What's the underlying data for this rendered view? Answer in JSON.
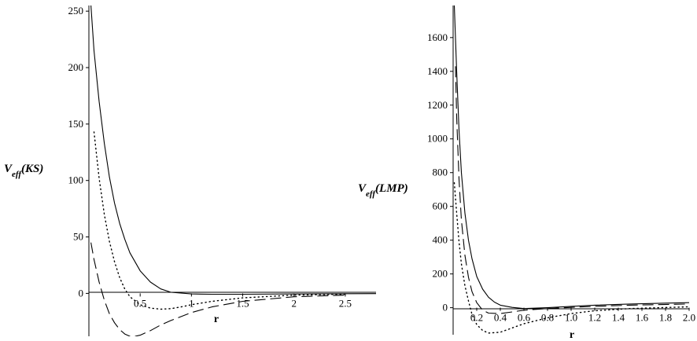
{
  "chart_data": [
    {
      "type": "line",
      "title": "",
      "ylabel": {
        "main": "V",
        "sub": "eff",
        "inner": "KS"
      },
      "xlabel": "r",
      "xlim": [
        0.0,
        2.8
      ],
      "ylim": [
        -38,
        255
      ],
      "x_ticks": [
        0.5,
        1,
        1.5,
        2,
        2.5
      ],
      "x_tick_labels": [
        "0.5",
        "1",
        "1.5",
        "2",
        "2.5"
      ],
      "y_ticks": [
        0,
        50,
        100,
        150,
        200,
        250
      ],
      "y_tick_labels": [
        "0",
        "50",
        "100",
        "150",
        "200",
        "250"
      ],
      "grid": false,
      "series": [
        {
          "style": "solid",
          "x": [
            0.02,
            0.05,
            0.1,
            0.15,
            0.2,
            0.25,
            0.3,
            0.35,
            0.4,
            0.5,
            0.6,
            0.7,
            0.8,
            1.0,
            1.2,
            1.5,
            2.0,
            2.5,
            2.8
          ],
          "y": [
            255,
            215,
            170,
            133,
            103,
            80,
            62,
            48,
            36,
            20,
            10,
            4,
            1,
            -0.5,
            -0.8,
            -0.8,
            -0.5,
            -0.3,
            -0.2
          ]
        },
        {
          "style": "dotted",
          "x": [
            0.05,
            0.1,
            0.15,
            0.2,
            0.25,
            0.3,
            0.35,
            0.4,
            0.5,
            0.6,
            0.7,
            0.8,
            0.9,
            1.0,
            1.2,
            1.5,
            2.0,
            2.5
          ],
          "y": [
            143,
            102,
            70,
            46,
            28,
            14,
            4,
            -3,
            -10,
            -13,
            -14,
            -13.5,
            -12,
            -10,
            -7,
            -4,
            -1.5,
            -0.7
          ]
        },
        {
          "style": "dashed",
          "x": [
            0.02,
            0.05,
            0.1,
            0.15,
            0.2,
            0.25,
            0.3,
            0.35,
            0.4,
            0.45,
            0.5,
            0.6,
            0.7,
            0.8,
            1.0,
            1.2,
            1.5,
            2.0,
            2.5
          ],
          "y": [
            45,
            30,
            10,
            -6,
            -18,
            -26,
            -32,
            -36,
            -38,
            -38,
            -37,
            -33,
            -28,
            -24,
            -17,
            -12,
            -7,
            -3,
            -1.5
          ]
        }
      ]
    },
    {
      "type": "line",
      "title": "",
      "ylabel": {
        "main": "V",
        "sub": "eff",
        "inner": "LMP"
      },
      "xlabel": "r",
      "xlim": [
        0.0,
        2.0
      ],
      "ylim": [
        -160,
        1790
      ],
      "x_ticks": [
        0.2,
        0.4,
        0.6,
        0.8,
        1.0,
        1.2,
        1.4,
        1.6,
        1.8,
        2.0
      ],
      "x_tick_labels": [
        "0.2",
        "0.4",
        "0.6",
        "0.8",
        "1.0",
        "1.2",
        "1.4",
        "1.6",
        "1.8",
        "2.0"
      ],
      "y_ticks": [
        0,
        200,
        400,
        600,
        800,
        1000,
        1200,
        1400,
        1600
      ],
      "y_tick_labels": [
        "0",
        "200",
        "400",
        "600",
        "800",
        "1000",
        "1200",
        "1400",
        "1600"
      ],
      "grid": false,
      "series": [
        {
          "style": "solid",
          "x": [
            0.01,
            0.03,
            0.05,
            0.07,
            0.1,
            0.13,
            0.16,
            0.2,
            0.25,
            0.3,
            0.35,
            0.4,
            0.5,
            0.6,
            0.8,
            1.0,
            1.2,
            1.5,
            1.8,
            2.0
          ],
          "y": [
            1790,
            1400,
            1050,
            800,
            560,
            400,
            290,
            185,
            110,
            62,
            33,
            15,
            2,
            -5,
            0,
            8,
            15,
            22,
            27,
            30
          ]
        },
        {
          "style": "dashed",
          "x": [
            0.02,
            0.03,
            0.05,
            0.07,
            0.1,
            0.13,
            0.16,
            0.2,
            0.25,
            0.3,
            0.4,
            0.5,
            0.6,
            0.8,
            1.0,
            1.2,
            1.5,
            2.0
          ],
          "y": [
            1430,
            1130,
            760,
            520,
            310,
            180,
            95,
            30,
            -15,
            -32,
            -35,
            -25,
            -15,
            -5,
            2,
            8,
            15,
            22
          ]
        },
        {
          "style": "dotted",
          "x": [
            0.01,
            0.03,
            0.05,
            0.07,
            0.1,
            0.13,
            0.16,
            0.2,
            0.25,
            0.3,
            0.4,
            0.5,
            0.6,
            0.8,
            1.0,
            1.2,
            1.5,
            2.0
          ],
          "y": [
            740,
            560,
            390,
            260,
            130,
            40,
            -40,
            -100,
            -135,
            -150,
            -145,
            -120,
            -95,
            -60,
            -35,
            -18,
            -5,
            5
          ]
        }
      ]
    }
  ]
}
